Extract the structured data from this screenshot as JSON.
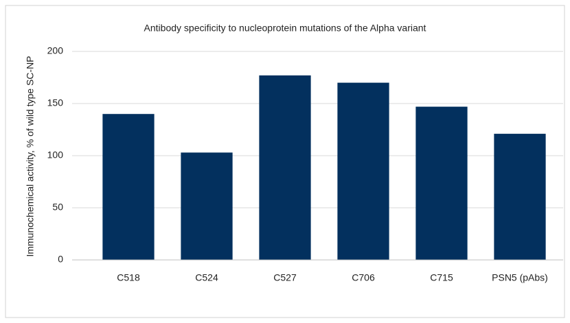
{
  "chart_data": {
    "type": "bar",
    "title": "Antibody specificity to nucleoprotein mutations of the Alpha variant",
    "y_label": "Immunochemical activity, % of wild type SC-NP",
    "categories": [
      "C518",
      "C524",
      "C527",
      "C706",
      "C715",
      "PSN5 (pAbs)"
    ],
    "values": [
      140,
      103,
      177,
      170,
      147,
      121
    ],
    "color": "#03305e",
    "ylim": [
      0,
      200
    ],
    "yticks": [
      0,
      50,
      100,
      150,
      200
    ],
    "grid": true
  }
}
